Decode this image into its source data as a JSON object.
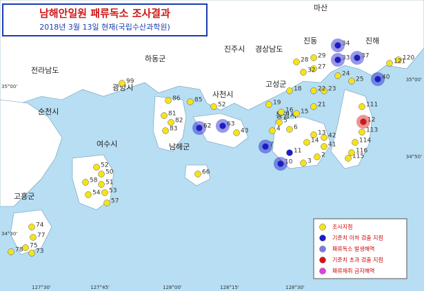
{
  "header": {
    "title": "남해안일원 패류독소 조사결과",
    "subtitle": "2018년 3월 13일 현재(국립수산과학원)"
  },
  "places": [
    "마산",
    "진동",
    "진해",
    "진주시",
    "경상남도",
    "하동군",
    "전라남도",
    "광양시",
    "사천시",
    "고성군",
    "순천시",
    "남해군",
    "여수시",
    "통영시",
    "고흥군"
  ],
  "coords": [
    "35°00'",
    "35°00'",
    "34°50'",
    "34°30'",
    "127°30'",
    "127°45'",
    "128°00'",
    "128°15'",
    "128°30'"
  ],
  "legend": [
    {
      "label": "조사지점",
      "color": "#f5e31a"
    },
    {
      "label": "기준치 이하 검출 지점",
      "color": "#1a1ad0"
    },
    {
      "label": "패류독소 발생해역",
      "color": "#7a7ae8"
    },
    {
      "label": "기준치 초과 검출 지점",
      "color": "#e01010"
    },
    {
      "label": "패류채취 금지해역",
      "color": "#e040e0"
    }
  ],
  "stations": [
    {
      "label": "34",
      "color": "#1a1ad0",
      "halo": true
    },
    {
      "label": "33",
      "color": "#1a1ad0",
      "halo": true
    },
    {
      "label": "37",
      "color": "#1a1ad0",
      "halo": true
    },
    {
      "label": "40",
      "color": "#1a1ad0",
      "halo": true
    },
    {
      "label": "12",
      "color": "#e01010",
      "halo": true
    },
    {
      "label": "63",
      "color": "#1a1ad0",
      "halo": true
    },
    {
      "label": "62",
      "color": "#1a1ad0",
      "halo": true
    },
    {
      "label": "7",
      "color": "#1a1ad0",
      "halo": true
    },
    {
      "label": "10",
      "color": "#1a1ad0",
      "halo": true
    },
    {
      "label": "11",
      "color": "#1a1ad0",
      "halo": false
    },
    {
      "label": "29",
      "color": "#f5e31a",
      "halo": false
    },
    {
      "label": "28",
      "color": "#f5e31a",
      "halo": false
    },
    {
      "label": "27",
      "color": "#f5e31a",
      "halo": false
    },
    {
      "label": "32",
      "color": "#f5e31a",
      "halo": false
    },
    {
      "label": "24",
      "color": "#f5e31a",
      "halo": false
    },
    {
      "label": "25",
      "color": "#f5e31a",
      "halo": false
    },
    {
      "label": "99",
      "color": "#f5e31a",
      "halo": false
    },
    {
      "label": "86",
      "color": "#f5e31a",
      "halo": false
    },
    {
      "label": "85",
      "color": "#f5e31a",
      "halo": false
    },
    {
      "label": "81",
      "color": "#f5e31a",
      "halo": false
    },
    {
      "label": "82",
      "color": "#f5e31a",
      "halo": false
    },
    {
      "label": "83",
      "color": "#f5e31a",
      "halo": false
    },
    {
      "label": "52",
      "color": "#f5e31a",
      "halo": false
    },
    {
      "label": "23",
      "color": "#f5e31a",
      "halo": false
    },
    {
      "label": "22",
      "color": "#f5e31a",
      "halo": false
    },
    {
      "label": "18",
      "color": "#f5e31a",
      "halo": false
    },
    {
      "label": "21",
      "color": "#f5e31a",
      "halo": false
    },
    {
      "label": "15",
      "color": "#f5e31a",
      "halo": false
    },
    {
      "label": "16",
      "color": "#f5e31a",
      "halo": false
    },
    {
      "label": "19",
      "color": "#f5e31a",
      "halo": false
    },
    {
      "label": "111",
      "color": "#f5e31a",
      "halo": false
    },
    {
      "label": "113",
      "color": "#f5e31a",
      "halo": false
    },
    {
      "label": "114",
      "color": "#f5e31a",
      "halo": false
    },
    {
      "label": "115",
      "color": "#f5e31a",
      "halo": false
    },
    {
      "label": "13",
      "color": "#f5e31a",
      "halo": false
    },
    {
      "label": "14",
      "color": "#f5e31a",
      "halo": false
    },
    {
      "label": "41",
      "color": "#f5e31a",
      "halo": false
    },
    {
      "label": "42",
      "color": "#f5e31a",
      "halo": false
    },
    {
      "label": "2",
      "color": "#f5e31a",
      "halo": false
    },
    {
      "label": "3",
      "color": "#f5e31a",
      "halo": false
    },
    {
      "label": "6",
      "color": "#f5e31a",
      "halo": false
    },
    {
      "label": "5",
      "color": "#f5e31a",
      "halo": false
    },
    {
      "label": "4",
      "color": "#f5e31a",
      "halo": false
    },
    {
      "label": "43",
      "color": "#f5e31a",
      "halo": false
    },
    {
      "label": "52",
      "color": "#f5e31a",
      "halo": false
    },
    {
      "label": "50",
      "color": "#f5e31a",
      "halo": false
    },
    {
      "label": "51",
      "color": "#f5e31a",
      "halo": false
    },
    {
      "label": "53",
      "color": "#f5e31a",
      "halo": false
    },
    {
      "label": "54",
      "color": "#f5e31a",
      "halo": false
    },
    {
      "label": "57",
      "color": "#f5e31a",
      "halo": false
    },
    {
      "label": "58",
      "color": "#f5e31a",
      "halo": false
    },
    {
      "label": "66",
      "color": "#f5e31a",
      "halo": false
    },
    {
      "label": "74",
      "color": "#f5e31a",
      "halo": false
    },
    {
      "label": "75",
      "color": "#f5e31a",
      "halo": false
    },
    {
      "label": "77",
      "color": "#f5e31a",
      "halo": false
    },
    {
      "label": "73",
      "color": "#f5e31a",
      "halo": false
    },
    {
      "label": "78",
      "color": "#f5e31a",
      "halo": false
    },
    {
      "label": "120",
      "color": "#f5e31a",
      "halo": false
    },
    {
      "label": "121",
      "color": "#f5e31a",
      "halo": false
    },
    {
      "label": "116",
      "color": "#f5e31a",
      "halo": false
    }
  ]
}
